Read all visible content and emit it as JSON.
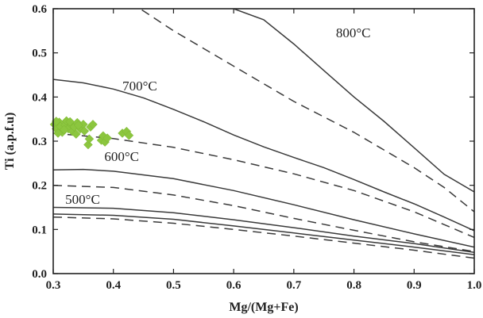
{
  "chart_data": {
    "type": "line",
    "title": "",
    "xlabel": "Mg/(Mg+Fe)",
    "ylabel": "Ti (a.p.f.u)",
    "xlim": [
      0.3,
      1.0
    ],
    "ylim": [
      0.0,
      0.6
    ],
    "xticks": [
      "0.3",
      "0.4",
      "0.5",
      "0.6",
      "0.7",
      "0.8",
      "0.9",
      "1.0"
    ],
    "yticks": [
      "0.0",
      "0.1",
      "0.2",
      "0.3",
      "0.4",
      "0.5",
      "0.6"
    ],
    "grid": false,
    "series": [
      {
        "name": "800°C",
        "style": "solid",
        "label_at": [
          0.77,
          0.535
        ],
        "x": [
          0.6,
          0.65,
          0.7,
          0.75,
          0.8,
          0.85,
          0.9,
          0.95,
          1.0
        ],
        "y": [
          0.6,
          0.575,
          0.52,
          0.46,
          0.4,
          0.345,
          0.285,
          0.225,
          0.185
        ]
      },
      {
        "name": "",
        "style": "dashed",
        "x": [
          0.3,
          0.4,
          0.5,
          0.6,
          0.7,
          0.8,
          0.9,
          0.95,
          1.0
        ],
        "y": [
          0.76,
          0.64,
          0.55,
          0.47,
          0.39,
          0.32,
          0.24,
          0.195,
          0.14
        ]
      },
      {
        "name": "700°C",
        "style": "solid",
        "label_at": [
          0.415,
          0.415
        ],
        "x": [
          0.3,
          0.35,
          0.4,
          0.45,
          0.5,
          0.55,
          0.6,
          0.65,
          0.7,
          0.75,
          0.8,
          0.85,
          0.9,
          0.95,
          1.0
        ],
        "y": [
          0.44,
          0.432,
          0.418,
          0.398,
          0.372,
          0.344,
          0.314,
          0.287,
          0.263,
          0.24,
          0.213,
          0.185,
          0.158,
          0.128,
          0.097
        ]
      },
      {
        "name": "",
        "style": "dashed",
        "x": [
          0.3,
          0.4,
          0.5,
          0.6,
          0.7,
          0.8,
          0.9,
          1.0
        ],
        "y": [
          0.318,
          0.306,
          0.286,
          0.258,
          0.226,
          0.188,
          0.14,
          0.082
        ]
      },
      {
        "name": "600°C",
        "style": "solid",
        "label_at": [
          0.385,
          0.255
        ],
        "x": [
          0.3,
          0.35,
          0.4,
          0.5,
          0.6,
          0.7,
          0.8,
          0.9,
          1.0
        ],
        "y": [
          0.235,
          0.236,
          0.232,
          0.215,
          0.188,
          0.156,
          0.122,
          0.09,
          0.06
        ]
      },
      {
        "name": "",
        "style": "dashed",
        "x": [
          0.3,
          0.4,
          0.5,
          0.6,
          0.7,
          0.8,
          0.9,
          1.0
        ],
        "y": [
          0.2,
          0.195,
          0.178,
          0.154,
          0.125,
          0.098,
          0.072,
          0.05
        ]
      },
      {
        "name": "500°C",
        "style": "solid",
        "label_at": [
          0.32,
          0.158
        ],
        "x": [
          0.3,
          0.4,
          0.5,
          0.6,
          0.7,
          0.8,
          0.9,
          1.0
        ],
        "y": [
          0.15,
          0.148,
          0.138,
          0.122,
          0.104,
          0.085,
          0.068,
          0.048
        ]
      },
      {
        "name": "",
        "style": "solid",
        "x": [
          0.3,
          0.4,
          0.5,
          0.6,
          0.7,
          0.8,
          0.9,
          1.0
        ],
        "y": [
          0.135,
          0.132,
          0.123,
          0.108,
          0.092,
          0.076,
          0.06,
          0.043
        ]
      },
      {
        "name": "",
        "style": "dashed",
        "x": [
          0.3,
          0.4,
          0.5,
          0.6,
          0.7,
          0.8,
          0.9,
          1.0
        ],
        "y": [
          0.128,
          0.124,
          0.114,
          0.1,
          0.085,
          0.069,
          0.053,
          0.035
        ]
      }
    ],
    "points": {
      "name": "",
      "color": "#8cc63f",
      "x": [
        0.302,
        0.305,
        0.31,
        0.312,
        0.315,
        0.32,
        0.322,
        0.325,
        0.33,
        0.332,
        0.335,
        0.338,
        0.34,
        0.345,
        0.35,
        0.352,
        0.358,
        0.362,
        0.366,
        0.38,
        0.383,
        0.386,
        0.39,
        0.415,
        0.422,
        0.426,
        0.305,
        0.318,
        0.328,
        0.342,
        0.36,
        0.308
      ],
      "y": [
        0.338,
        0.328,
        0.343,
        0.333,
        0.32,
        0.336,
        0.346,
        0.328,
        0.338,
        0.322,
        0.332,
        0.316,
        0.342,
        0.328,
        0.338,
        0.323,
        0.292,
        0.332,
        0.338,
        0.302,
        0.312,
        0.298,
        0.307,
        0.318,
        0.322,
        0.313,
        0.345,
        0.326,
        0.344,
        0.336,
        0.305,
        0.318
      ]
    },
    "colors": {
      "line": "#3a3a3a",
      "axis": "#222222",
      "marker": "#8cc63f"
    }
  }
}
